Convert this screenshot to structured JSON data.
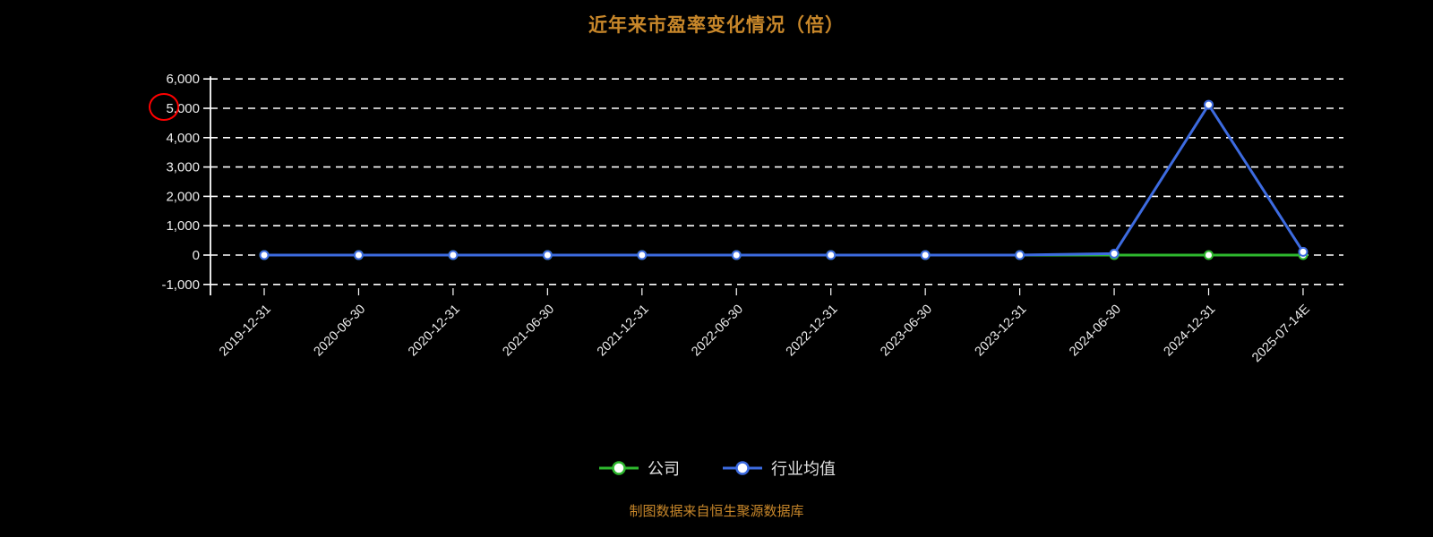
{
  "chart": {
    "title": "近年来市盈率变化情况（倍）",
    "source_note": "制图数据来自恒生聚源数据库",
    "colors": {
      "background": "#000000",
      "grid": "#ffffff",
      "axis_label": "#ebebeb",
      "title": "#c8872a",
      "source_note_color": "#c8872a",
      "company": "#2eb82e",
      "industry": "#3d6be0",
      "marker_fill": "#ffffff",
      "annotation": "#ff0000"
    },
    "annotation": {
      "shape": "ellipse",
      "color": "#ff0000",
      "near": "y-axis label 5,000"
    }
  },
  "chart_data": {
    "type": "line",
    "title": "近年来市盈率变化情况（倍）",
    "categories": [
      "2019-12-31",
      "2020-06-30",
      "2020-12-31",
      "2021-06-30",
      "2021-12-31",
      "2022-06-30",
      "2022-12-31",
      "2023-06-30",
      "2023-12-31",
      "2024-06-30",
      "2024-12-31",
      "2025-07-14E"
    ],
    "series": [
      {
        "name": "公司",
        "values": [
          0,
          0,
          0,
          0,
          0,
          0,
          0,
          0,
          0,
          0,
          0,
          0
        ]
      },
      {
        "name": "行业均值",
        "values": [
          0,
          0,
          0,
          0,
          0,
          0,
          0,
          0,
          0,
          50,
          5120,
          110
        ]
      }
    ],
    "ylim": [
      -1000,
      6000
    ],
    "y_ticks": [
      6000,
      5000,
      4000,
      3000,
      2000,
      1000,
      0,
      -1000
    ],
    "y_tick_labels": [
      "6,000",
      "5,000",
      "4,000",
      "3,000",
      "2,000",
      "1,000",
      "0",
      "-1,000"
    ],
    "grid": "horizontal dashed",
    "legend_position": "bottom",
    "values_note": "Near-zero values estimated from gridlines; chart resolution is approximately ±100."
  }
}
